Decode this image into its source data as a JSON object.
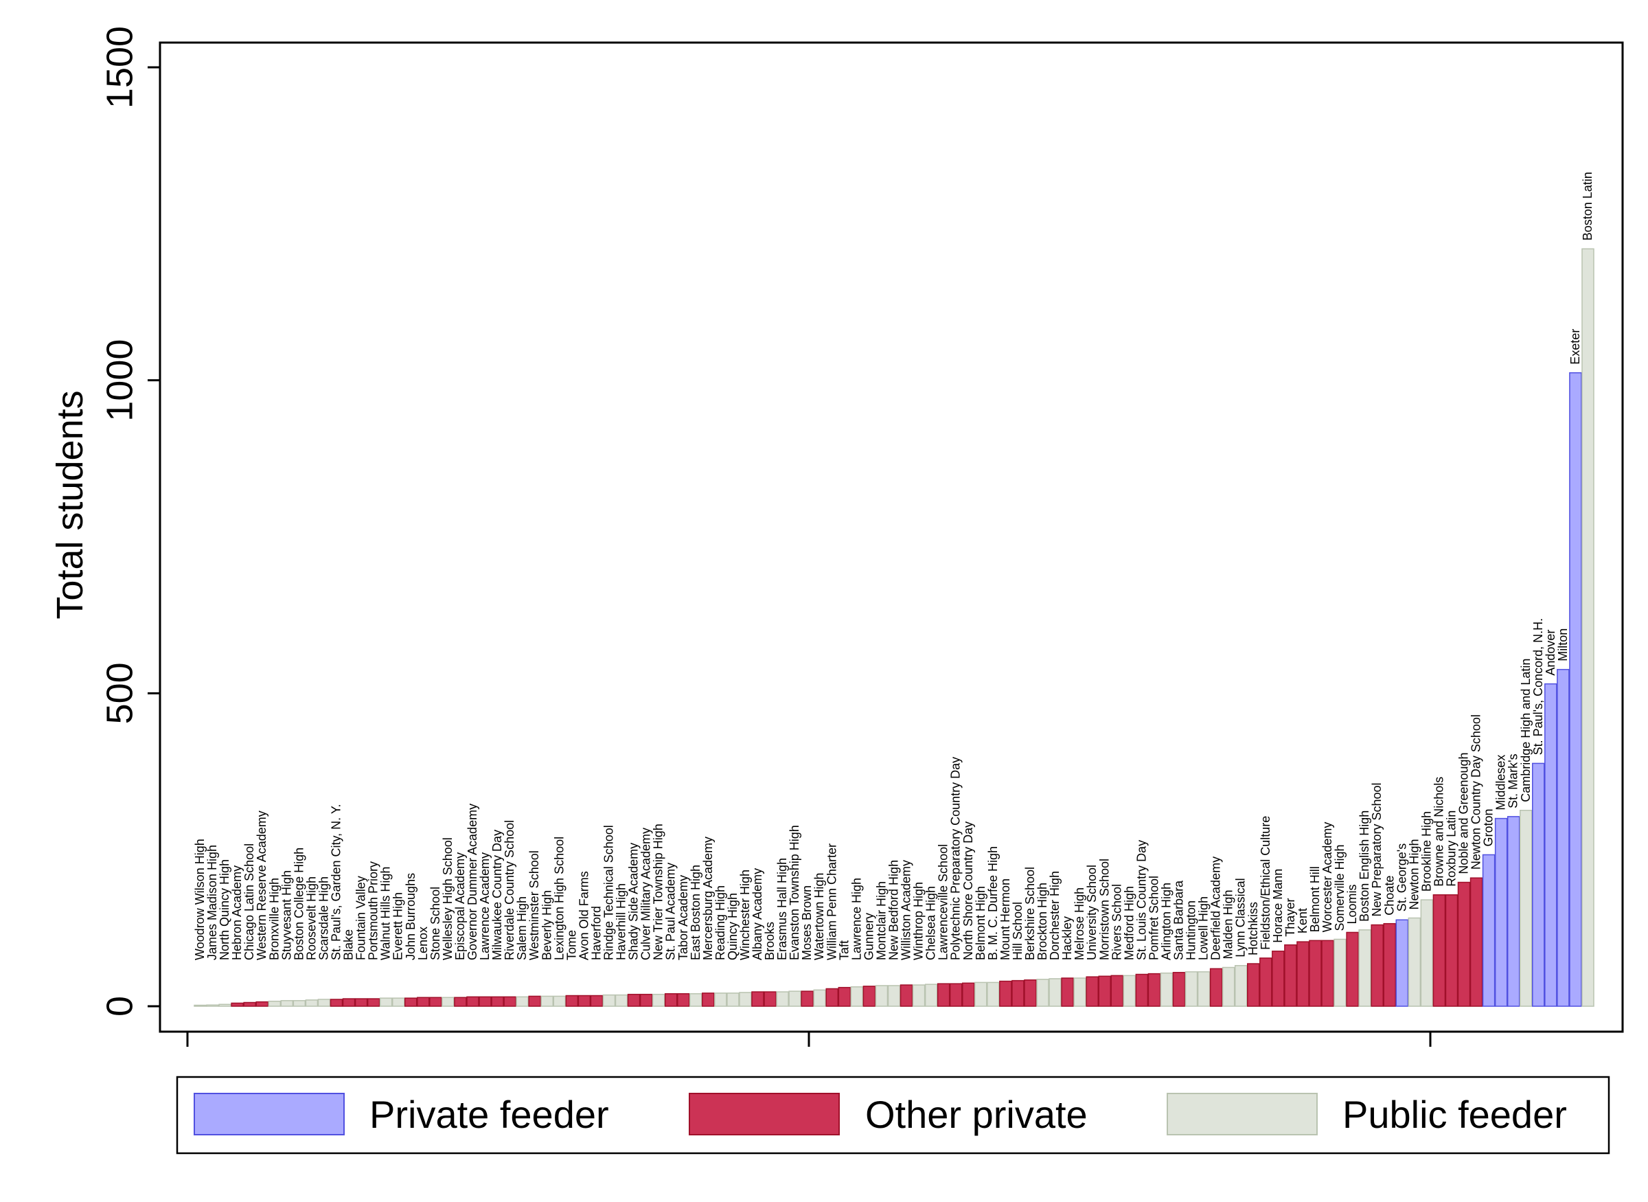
{
  "chart_data": {
    "type": "bar",
    "ylabel": "Total students",
    "xlabel": "",
    "title": "",
    "ylim": [
      0,
      1500
    ],
    "yticks": [
      0,
      500,
      1000,
      1500
    ],
    "xticks_count": 3,
    "grid": false,
    "legend_position": "bottom",
    "groups": [
      {
        "id": "pf",
        "name": "Private feeder",
        "color": "#aaaaff",
        "stroke": "#5050e0"
      },
      {
        "id": "op",
        "name": "Other private",
        "color": "#cc3355",
        "stroke": "#a0102a"
      },
      {
        "id": "pu",
        "name": "Public feeder",
        "color": "#dfe4da",
        "stroke": "#b9c3b0"
      }
    ],
    "bars": [
      {
        "label": "Woodrow Wilson High",
        "value": 1,
        "group": "pu"
      },
      {
        "label": "James Madison High",
        "value": 2,
        "group": "pu"
      },
      {
        "label": "North Quincy High",
        "value": 3,
        "group": "pu"
      },
      {
        "label": "Hebron Academy",
        "value": 5,
        "group": "op"
      },
      {
        "label": "Chicago Latin School",
        "value": 6,
        "group": "op"
      },
      {
        "label": "Western Reserve Academy",
        "value": 7,
        "group": "op"
      },
      {
        "label": "Bronxville High",
        "value": 8,
        "group": "pu"
      },
      {
        "label": "Stuyvesant High",
        "value": 9,
        "group": "pu"
      },
      {
        "label": "Boston College High",
        "value": 9,
        "group": "pu"
      },
      {
        "label": "Roosevelt High",
        "value": 10,
        "group": "pu"
      },
      {
        "label": "Scarsdale High",
        "value": 11,
        "group": "pu"
      },
      {
        "label": "St. Paul's, Garden City, N. Y.",
        "value": 11,
        "group": "op"
      },
      {
        "label": "Blake",
        "value": 12,
        "group": "op"
      },
      {
        "label": "Fountain Valley",
        "value": 12,
        "group": "op"
      },
      {
        "label": "Portsmouth Priory",
        "value": 12,
        "group": "op"
      },
      {
        "label": "Walnut Hills High",
        "value": 13,
        "group": "pu"
      },
      {
        "label": "Everett High",
        "value": 13,
        "group": "pu"
      },
      {
        "label": "John Burroughs",
        "value": 13,
        "group": "op"
      },
      {
        "label": "Lenox",
        "value": 14,
        "group": "op"
      },
      {
        "label": "Stone School",
        "value": 14,
        "group": "op"
      },
      {
        "label": "Wellesley High School",
        "value": 14,
        "group": "pu"
      },
      {
        "label": "Episcopal Academy",
        "value": 14,
        "group": "op"
      },
      {
        "label": "Governor Dummer Academy",
        "value": 15,
        "group": "op"
      },
      {
        "label": "Lawrence Academy",
        "value": 15,
        "group": "op"
      },
      {
        "label": "Milwaukee Country Day",
        "value": 15,
        "group": "op"
      },
      {
        "label": "Riverdale Country School",
        "value": 15,
        "group": "op"
      },
      {
        "label": "Salem High",
        "value": 15,
        "group": "pu"
      },
      {
        "label": "Westminster School",
        "value": 16,
        "group": "op"
      },
      {
        "label": "Beverly High",
        "value": 16,
        "group": "pu"
      },
      {
        "label": "Lexington High School",
        "value": 16,
        "group": "pu"
      },
      {
        "label": "Tome",
        "value": 17,
        "group": "op"
      },
      {
        "label": "Avon Old Farms",
        "value": 17,
        "group": "op"
      },
      {
        "label": "Haverford",
        "value": 17,
        "group": "op"
      },
      {
        "label": "Rindge Technical School",
        "value": 18,
        "group": "pu"
      },
      {
        "label": "Haverhill High",
        "value": 18,
        "group": "pu"
      },
      {
        "label": "Shady Side Academy",
        "value": 19,
        "group": "op"
      },
      {
        "label": "Culver Military Academy",
        "value": 19,
        "group": "op"
      },
      {
        "label": "New Trier Township High",
        "value": 19,
        "group": "pu"
      },
      {
        "label": "St. Paul Academy",
        "value": 20,
        "group": "op"
      },
      {
        "label": "Tabor Academy",
        "value": 20,
        "group": "op"
      },
      {
        "label": "East Boston High",
        "value": 20,
        "group": "pu"
      },
      {
        "label": "Mercersburg Academy",
        "value": 21,
        "group": "op"
      },
      {
        "label": "Reading High",
        "value": 21,
        "group": "pu"
      },
      {
        "label": "Quincy High",
        "value": 21,
        "group": "pu"
      },
      {
        "label": "Winchester High",
        "value": 22,
        "group": "pu"
      },
      {
        "label": "Albany Academy",
        "value": 23,
        "group": "op"
      },
      {
        "label": "Brooks",
        "value": 23,
        "group": "op"
      },
      {
        "label": "Erasmus Hall High",
        "value": 23,
        "group": "pu"
      },
      {
        "label": "Evanston Township High",
        "value": 24,
        "group": "pu"
      },
      {
        "label": "Moses Brown",
        "value": 24,
        "group": "op"
      },
      {
        "label": "Watertown High",
        "value": 26,
        "group": "pu"
      },
      {
        "label": "William Penn Charter",
        "value": 28,
        "group": "op"
      },
      {
        "label": "Taft",
        "value": 30,
        "group": "op"
      },
      {
        "label": "Lawrence High",
        "value": 31,
        "group": "pu"
      },
      {
        "label": "Gunnery",
        "value": 32,
        "group": "op"
      },
      {
        "label": "Montclair High",
        "value": 33,
        "group": "pu"
      },
      {
        "label": "New Bedford High",
        "value": 33,
        "group": "pu"
      },
      {
        "label": "Williston Academy",
        "value": 34,
        "group": "op"
      },
      {
        "label": "Winthrop High",
        "value": 34,
        "group": "pu"
      },
      {
        "label": "Chelsea High",
        "value": 35,
        "group": "pu"
      },
      {
        "label": "Lawrenceville School",
        "value": 36,
        "group": "op"
      },
      {
        "label": "Polytechnic Preparatory Country Day",
        "value": 36,
        "group": "op"
      },
      {
        "label": "North Shore Country Day",
        "value": 37,
        "group": "op"
      },
      {
        "label": "Belmont High",
        "value": 38,
        "group": "pu"
      },
      {
        "label": "B. M. C. Durfee High",
        "value": 38,
        "group": "pu"
      },
      {
        "label": "Mount Hermon",
        "value": 40,
        "group": "op"
      },
      {
        "label": "Hill School",
        "value": 41,
        "group": "op"
      },
      {
        "label": "Berkshire School",
        "value": 42,
        "group": "op"
      },
      {
        "label": "Brockton High",
        "value": 43,
        "group": "pu"
      },
      {
        "label": "Dorchester High",
        "value": 44,
        "group": "pu"
      },
      {
        "label": "Hackley",
        "value": 45,
        "group": "op"
      },
      {
        "label": "Melrose High",
        "value": 45,
        "group": "pu"
      },
      {
        "label": "University School",
        "value": 47,
        "group": "op"
      },
      {
        "label": "Morristown School",
        "value": 48,
        "group": "op"
      },
      {
        "label": "Rivers School",
        "value": 49,
        "group": "op"
      },
      {
        "label": "Medford High",
        "value": 49,
        "group": "pu"
      },
      {
        "label": "St. Louis Country Day",
        "value": 51,
        "group": "op"
      },
      {
        "label": "Pomfret School",
        "value": 52,
        "group": "op"
      },
      {
        "label": "Arlington High",
        "value": 53,
        "group": "pu"
      },
      {
        "label": "Santa Barbara",
        "value": 54,
        "group": "op"
      },
      {
        "label": "Huntington",
        "value": 55,
        "group": "pu"
      },
      {
        "label": "Lowell High",
        "value": 55,
        "group": "pu"
      },
      {
        "label": "Deerfield Academy",
        "value": 60,
        "group": "op"
      },
      {
        "label": "Malden High",
        "value": 62,
        "group": "pu"
      },
      {
        "label": "Lynn Classical",
        "value": 65,
        "group": "pu"
      },
      {
        "label": "Hotchkiss",
        "value": 68,
        "group": "op"
      },
      {
        "label": "Fieldston/Ethical Culture",
        "value": 77,
        "group": "op"
      },
      {
        "label": "Horace Mann",
        "value": 88,
        "group": "op"
      },
      {
        "label": "Thayer",
        "value": 98,
        "group": "op"
      },
      {
        "label": "Kent",
        "value": 103,
        "group": "op"
      },
      {
        "label": "Belmont Hill",
        "value": 105,
        "group": "op"
      },
      {
        "label": "Worcester Academy",
        "value": 105,
        "group": "op"
      },
      {
        "label": "Somerville High",
        "value": 107,
        "group": "pu"
      },
      {
        "label": "Loomis",
        "value": 118,
        "group": "op"
      },
      {
        "label": "Boston English High",
        "value": 122,
        "group": "pu"
      },
      {
        "label": "New Preparatory School",
        "value": 130,
        "group": "op"
      },
      {
        "label": "Choate",
        "value": 132,
        "group": "op"
      },
      {
        "label": "St. George's",
        "value": 138,
        "group": "pf"
      },
      {
        "label": "Newton High",
        "value": 141,
        "group": "pu"
      },
      {
        "label": "Brookline High",
        "value": 170,
        "group": "pu"
      },
      {
        "label": "Browne and Nichols",
        "value": 178,
        "group": "op"
      },
      {
        "label": "Roxbury Latin",
        "value": 178,
        "group": "op"
      },
      {
        "label": "Noble and Greenough",
        "value": 198,
        "group": "op"
      },
      {
        "label": "Newton Country Day School",
        "value": 205,
        "group": "op"
      },
      {
        "label": "Groton",
        "value": 242,
        "group": "pf"
      },
      {
        "label": "Middlesex",
        "value": 300,
        "group": "pf"
      },
      {
        "label": "St. Mark's",
        "value": 303,
        "group": "pf"
      },
      {
        "label": "Cambridge High and Latin",
        "value": 313,
        "group": "pu"
      },
      {
        "label": "St. Paul's, Concord, N.H.",
        "value": 388,
        "group": "pf"
      },
      {
        "label": "Andover",
        "value": 515,
        "group": "pf"
      },
      {
        "label": "Milton",
        "value": 538,
        "group": "pf"
      },
      {
        "label": "Exeter",
        "value": 1012,
        "group": "pf"
      },
      {
        "label": "Boston Latin",
        "value": 1210,
        "group": "pu"
      }
    ],
    "top_labels": [
      "Exeter",
      "Boston Latin"
    ]
  }
}
